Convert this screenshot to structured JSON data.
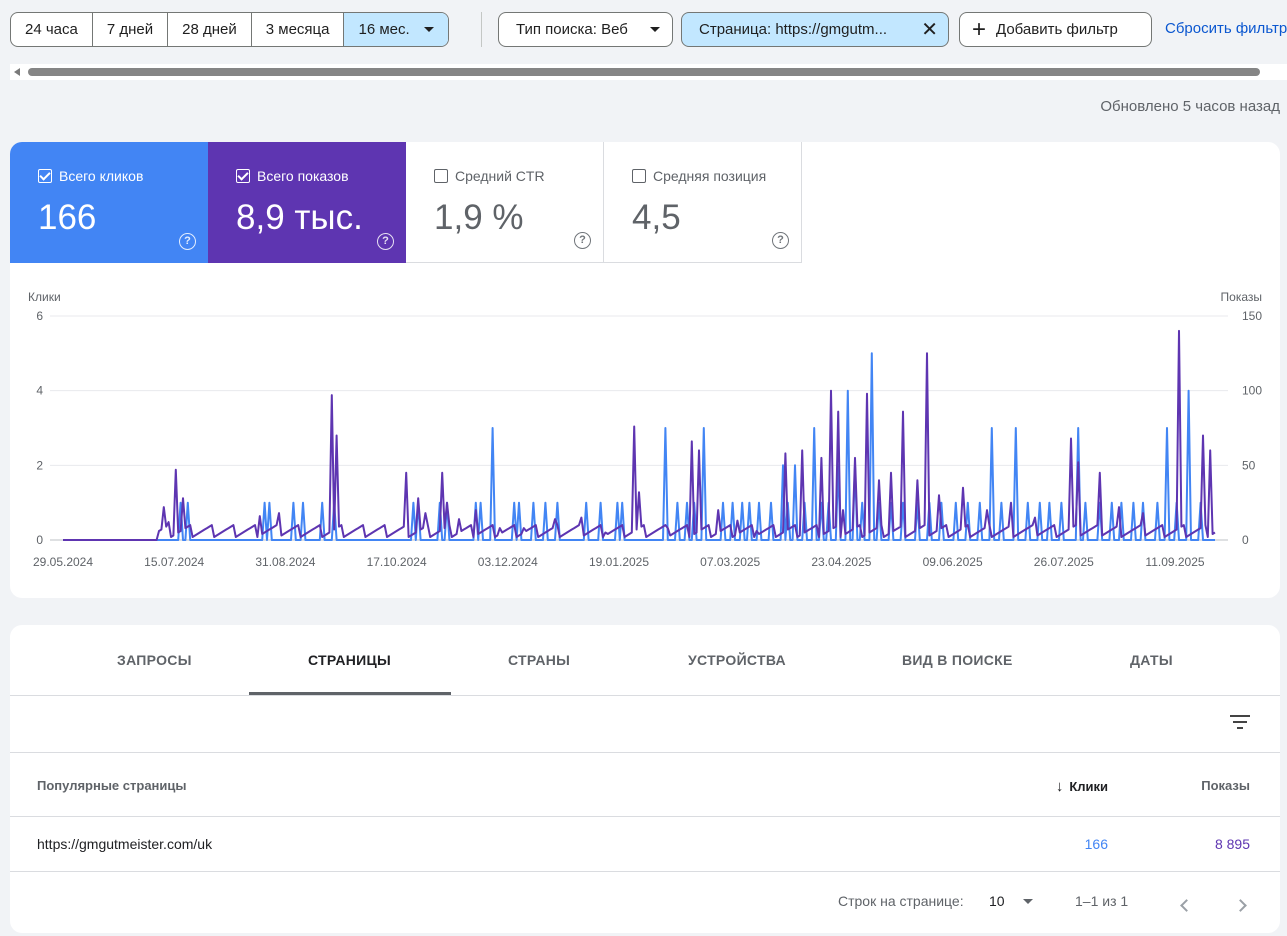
{
  "date_ranges": [
    "24 часа",
    "7 дней",
    "28 дней",
    "3 месяца"
  ],
  "date_selected": "16 мес.",
  "filters": {
    "search_type": "Тип поиска: Веб",
    "page": "Страница: https://gmgutm...",
    "add": "Добавить фильтр",
    "reset": "Сбросить фильтры"
  },
  "updated": "Обновлено 5 часов назад",
  "metrics": [
    {
      "label": "Всего кликов",
      "value": "166",
      "checked": true
    },
    {
      "label": "Всего показов",
      "value": "8,9 тыс.",
      "checked": true
    },
    {
      "label": "Средний CTR",
      "value": "1,9 %",
      "checked": false
    },
    {
      "label": "Средняя позиция",
      "value": "4,5",
      "checked": false
    }
  ],
  "chart_data": {
    "type": "line",
    "ylabel_left": "Клики",
    "ylabel_right": "Показы",
    "y_left_ticks": [
      "0",
      "2",
      "4",
      "6"
    ],
    "y_right_ticks": [
      "0",
      "50",
      "100",
      "150"
    ],
    "ylim_left": [
      0,
      6
    ],
    "ylim_right": [
      0,
      150
    ],
    "x_ticks": [
      "29.05.2024",
      "15.07.2024",
      "31.08.2024",
      "17.10.2024",
      "03.12.2024",
      "19.01.2025",
      "07.03.2025",
      "23.04.2025",
      "09.06.2025",
      "26.07.2025",
      "11.09.2025"
    ],
    "grid": true,
    "series": [
      {
        "name": "Клики",
        "axis": "left",
        "color": "#4285f4",
        "peaks": [
          [
            49,
            1
          ],
          [
            52,
            1
          ],
          [
            84,
            1
          ],
          [
            86,
            1
          ],
          [
            96,
            1
          ],
          [
            100,
            1
          ],
          [
            108,
            1
          ],
          [
            113,
            1
          ],
          [
            146,
            1
          ],
          [
            148,
            1
          ],
          [
            157,
            1
          ],
          [
            160,
            1
          ],
          [
            172,
            1
          ],
          [
            174,
            1
          ],
          [
            179,
            3
          ],
          [
            188,
            1
          ],
          [
            190,
            1
          ],
          [
            196,
            1
          ],
          [
            201,
            1
          ],
          [
            206,
            1
          ],
          [
            218,
            1
          ],
          [
            224,
            1
          ],
          [
            231,
            1
          ],
          [
            233,
            1
          ],
          [
            251,
            3
          ],
          [
            256,
            1
          ],
          [
            260,
            1
          ],
          [
            263,
            1
          ],
          [
            267,
            3
          ],
          [
            275,
            1
          ],
          [
            279,
            1
          ],
          [
            283,
            1
          ],
          [
            286,
            1
          ],
          [
            290,
            1
          ],
          [
            295,
            1
          ],
          [
            300,
            2
          ],
          [
            302,
            1
          ],
          [
            305,
            2
          ],
          [
            309,
            1
          ],
          [
            313,
            3
          ],
          [
            316,
            1
          ],
          [
            319,
            1
          ],
          [
            323,
            2
          ],
          [
            327,
            4
          ],
          [
            330,
            2
          ],
          [
            333,
            1
          ],
          [
            337,
            5
          ],
          [
            340,
            1
          ],
          [
            345,
            1
          ],
          [
            350,
            1
          ],
          [
            356,
            1
          ],
          [
            361,
            1
          ],
          [
            366,
            1
          ],
          [
            372,
            1
          ],
          [
            377,
            1
          ],
          [
            382,
            1
          ],
          [
            387,
            3
          ],
          [
            391,
            1
          ],
          [
            397,
            3
          ],
          [
            402,
            1
          ],
          [
            407,
            1
          ],
          [
            411,
            1
          ],
          [
            416,
            1
          ],
          [
            423,
            3
          ],
          [
            426,
            1
          ],
          [
            432,
            1
          ],
          [
            437,
            1
          ],
          [
            441,
            1
          ],
          [
            446,
            1
          ],
          [
            450,
            1
          ],
          [
            456,
            1
          ],
          [
            460,
            3
          ],
          [
            464,
            1
          ],
          [
            469,
            4
          ],
          [
            474,
            1
          ]
        ]
      },
      {
        "name": "Показы",
        "axis": "right",
        "color": "#5e35b1",
        "peaks": [
          [
            42,
            22
          ],
          [
            44,
            12
          ],
          [
            47,
            47
          ],
          [
            50,
            28
          ],
          [
            74,
            2
          ],
          [
            78,
            4
          ],
          [
            82,
            16
          ],
          [
            90,
            18
          ],
          [
            98,
            8
          ],
          [
            112,
            97
          ],
          [
            114,
            70
          ],
          [
            130,
            4
          ],
          [
            143,
            45
          ],
          [
            148,
            28
          ],
          [
            151,
            18
          ],
          [
            160,
            25
          ],
          [
            158,
            45
          ],
          [
            165,
            14
          ],
          [
            172,
            20
          ],
          [
            182,
            8
          ],
          [
            192,
            8
          ],
          [
            205,
            14
          ],
          [
            216,
            15
          ],
          [
            226,
            5
          ],
          [
            238,
            76
          ],
          [
            240,
            32
          ],
          [
            252,
            8
          ],
          [
            262,
            66
          ],
          [
            265,
            60
          ],
          [
            273,
            20
          ],
          [
            281,
            13
          ],
          [
            289,
            6
          ],
          [
            301,
            58
          ],
          [
            308,
            60
          ],
          [
            316,
            55
          ],
          [
            320,
            100
          ],
          [
            323,
            86
          ],
          [
            325,
            20
          ],
          [
            330,
            55
          ],
          [
            335,
            98
          ],
          [
            340,
            40
          ],
          [
            345,
            45
          ],
          [
            350,
            86
          ],
          [
            356,
            40
          ],
          [
            360,
            125
          ],
          [
            365,
            30
          ],
          [
            375,
            35
          ],
          [
            385,
            20
          ],
          [
            395,
            25
          ],
          [
            405,
            15
          ],
          [
            420,
            68
          ],
          [
            423,
            52
          ],
          [
            432,
            45
          ],
          [
            440,
            22
          ],
          [
            450,
            18
          ],
          [
            465,
            140
          ],
          [
            475,
            70
          ],
          [
            478,
            60
          ],
          [
            485,
            48
          ],
          [
            478,
            10
          ]
        ]
      }
    ]
  },
  "tabs": [
    "ЗАПРОСЫ",
    "СТРАНИЦЫ",
    "СТРАНЫ",
    "УСТРОЙСТВА",
    "ВИД В ПОИСКЕ",
    "ДАТЫ"
  ],
  "table": {
    "col_page": "Популярные страницы",
    "col_clicks": "Клики",
    "col_impr": "Показы",
    "rows": [
      {
        "page": "https://gmgutmeister.com/uk",
        "clicks": "166",
        "impr": "8 895"
      }
    ]
  },
  "pager": {
    "rows_label": "Строк на странице:",
    "rows_value": "10",
    "range": "1–1 из 1"
  }
}
